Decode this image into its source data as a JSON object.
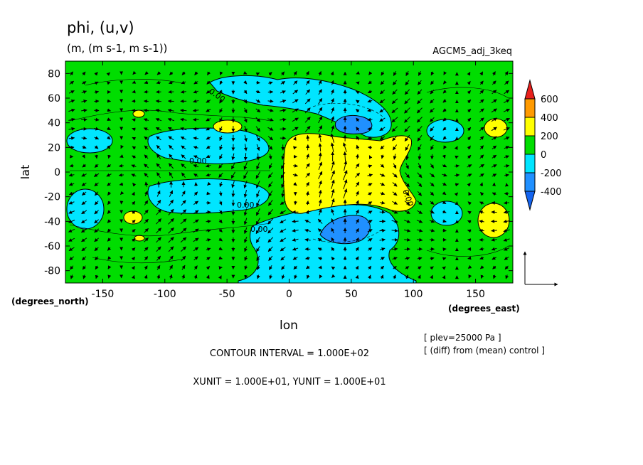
{
  "chart_data": {
    "type": "heatmap",
    "title": "phi, (u,v)",
    "units": "(m, (m s-1, m s-1))",
    "experiment": "AGCM5_adj_3keq",
    "xlabel": "lon",
    "ylabel": "lat",
    "xunit_label": "(degrees_east)",
    "yunit_label": "(degrees_north)",
    "xlim": [
      -180,
      180
    ],
    "ylim": [
      -90,
      90
    ],
    "x_ticks": [
      -150,
      -100,
      -50,
      0,
      50,
      100,
      150
    ],
    "x_tick_labels": [
      "-150",
      "-100",
      "-50",
      "0",
      "50",
      "100",
      "150"
    ],
    "y_ticks": [
      -80,
      -60,
      -40,
      -20,
      0,
      20,
      40,
      60,
      80
    ],
    "y_tick_labels": [
      "-80",
      "-60",
      "-40",
      "-20",
      "0",
      "20",
      "40",
      "60",
      "80"
    ],
    "colorbar": {
      "levels": [
        600,
        400,
        200,
        0,
        -200,
        -400
      ],
      "level_labels": [
        "600",
        "400",
        "200",
        "0",
        "-200",
        "-400"
      ],
      "colors": [
        "#e8201c",
        "#ff9a00",
        "#ffff00",
        "#00dd00",
        "#00e5ff",
        "#2090ff",
        "#1464f0"
      ]
    },
    "contour_labels": [
      "0.00",
      "0.00",
      "0.00",
      "0.00",
      "0.00"
    ],
    "features": [
      {
        "kind": "high",
        "lon": 52,
        "lat": 5,
        "level": 200
      },
      {
        "kind": "low",
        "lon": 48,
        "lat": 38,
        "level": -400
      },
      {
        "kind": "low",
        "lon": 48,
        "lat": -38,
        "level": -400
      }
    ],
    "notes": {
      "plev": "[ plev=25000 Pa ]",
      "diff": "[ (diff) from (mean) control ]",
      "contour_interval": "CONTOUR INTERVAL = 1.000E+02",
      "units_line": "XUNIT = 1.000E+01, YUNIT = 1.000E+01"
    }
  }
}
